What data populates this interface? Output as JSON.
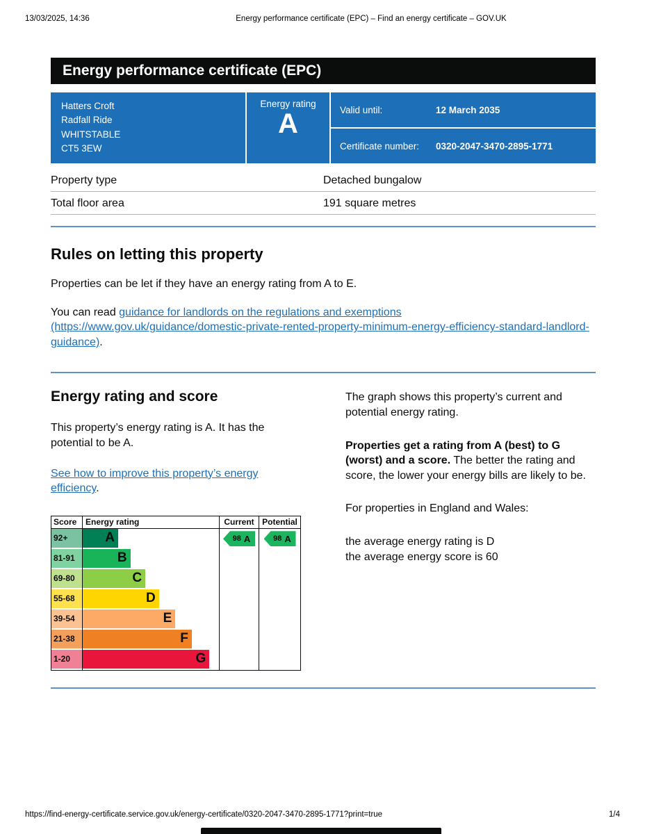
{
  "print_header": {
    "timestamp": "13/03/2025, 14:36",
    "title": "Energy performance certificate (EPC) – Find an energy certificate – GOV.UK"
  },
  "banner": {
    "title": "Energy performance certificate (EPC)"
  },
  "summary": {
    "address_lines": [
      "Hatters Croft",
      "Radfall Ride",
      "WHITSTABLE",
      "CT5 3EW"
    ],
    "rating_label": "Energy rating",
    "rating_value": "A",
    "valid_until_label": "Valid until:",
    "valid_until_value": "12 March 2035",
    "certificate_number_label": "Certificate number:",
    "certificate_number_value": "0320-2047-3470-2895-1771"
  },
  "property_table": {
    "rows": [
      {
        "label": "Property type",
        "value": "Detached bungalow"
      },
      {
        "label": "Total floor area",
        "value": "191 square metres"
      }
    ]
  },
  "rules_section": {
    "heading": "Rules on letting this property",
    "paragraph1": "Properties can be let if they have an energy rating from A to E.",
    "paragraph2_prefix": "You can read ",
    "link_text": "guidance for landlords on the regulations and exemptions (https://www.gov.uk/guidance/domestic-private-rented-property-minimum-energy-efficiency-standard-landlord-guidance)",
    "paragraph2_suffix": "."
  },
  "rating_section": {
    "heading": "Energy rating and score",
    "paragraph1": "This property’s energy rating is A. It has the potential to be A.",
    "link_text": "See how to improve this property’s energy efficiency",
    "link_suffix": "."
  },
  "chart_data": {
    "type": "bar",
    "title": "Energy rating and score bands",
    "headers": {
      "score": "Score",
      "energy_rating": "Energy rating",
      "current": "Current",
      "potential": "Potential"
    },
    "bands": [
      {
        "score": "92+",
        "letter": "A",
        "color": "#008054",
        "tint": "#7bc2a2",
        "width_pct": 26
      },
      {
        "score": "81-91",
        "letter": "B",
        "color": "#19b459",
        "tint": "#7fd3a0",
        "width_pct": 35
      },
      {
        "score": "69-80",
        "letter": "C",
        "color": "#8dce46",
        "tint": "#bfe08d",
        "width_pct": 46
      },
      {
        "score": "55-68",
        "letter": "D",
        "color": "#ffd500",
        "tint": "#ffe04d",
        "width_pct": 56
      },
      {
        "score": "39-54",
        "letter": "E",
        "color": "#fcaa65",
        "tint": "#fcc291",
        "width_pct": 68
      },
      {
        "score": "21-38",
        "letter": "F",
        "color": "#ef8023",
        "tint": "#f3a05d",
        "width_pct": 80
      },
      {
        "score": "1-20",
        "letter": "G",
        "color": "#e9153b",
        "tint": "#ef8095",
        "width_pct": 93
      }
    ],
    "current": {
      "score": "98",
      "letter": "A",
      "band_index": 0,
      "color": "#1cb45e"
    },
    "potential": {
      "score": "98",
      "letter": "A",
      "band_index": 0,
      "color": "#1cb45e"
    }
  },
  "explanation": {
    "paragraph1": "The graph shows this property’s current and potential energy rating.",
    "paragraph2_bold": "Properties get a rating from A (best) to G (worst) and a score.",
    "paragraph2_rest": " The better the rating and score, the lower your energy bills are likely to be.",
    "paragraph3": "For properties in England and Wales:",
    "average_rating_line": "the average energy rating is D",
    "average_score_line": "the average energy score is 60"
  },
  "print_footer": {
    "url": "https://find-energy-certificate.service.gov.uk/energy-certificate/0320-2047-3470-2895-1771?print=true",
    "page": "1/4"
  },
  "colors": {
    "govuk_blue": "#1d70b8",
    "banner_black": "#0b0c0c",
    "link_blue": "#1d70b8",
    "divider_blue": "#5d92c1",
    "border_gray": "#b1b4b6"
  }
}
